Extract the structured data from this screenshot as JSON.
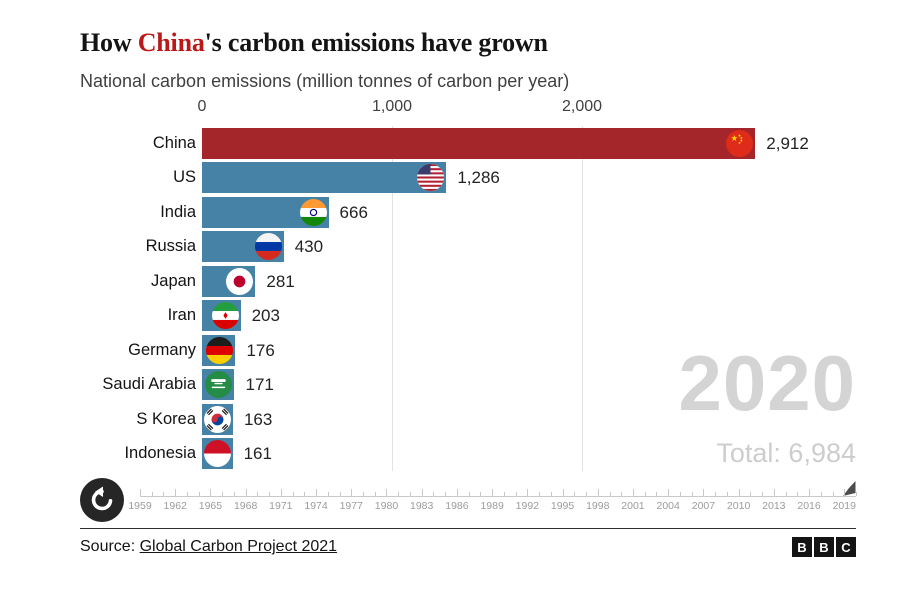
{
  "header": {
    "title_prefix": "How ",
    "title_highlight": "China",
    "title_suffix": "'s carbon emissions have grown",
    "subtitle": "National carbon emissions (million tonnes of carbon per year)"
  },
  "chart_data": {
    "type": "bar",
    "orientation": "horizontal",
    "title": "How China's carbon emissions have grown",
    "subtitle": "National carbon emissions (million tonnes of carbon per year)",
    "unit": "million tonnes of carbon per year",
    "year": "2020",
    "total_label": "Total: 6,984",
    "total_value": 6984,
    "categories": [
      "China",
      "US",
      "India",
      "Russia",
      "Japan",
      "Iran",
      "Germany",
      "Saudi Arabia",
      "S Korea",
      "Indonesia"
    ],
    "values": [
      2912,
      1286,
      666,
      430,
      281,
      203,
      176,
      171,
      163,
      161
    ],
    "value_labels": [
      "2,912",
      "1,286",
      "666",
      "430",
      "281",
      "203",
      "176",
      "171",
      "163",
      "161"
    ],
    "flags": [
      "china-flag",
      "us-flag",
      "india-flag",
      "russia-flag",
      "japan-flag",
      "iran-flag",
      "germany-flag",
      "saudi-arabia-flag",
      "south-korea-flag",
      "indonesia-flag"
    ],
    "highlight_index": 0,
    "axis": {
      "ticks": [
        0,
        1000,
        2000
      ],
      "tick_labels": [
        "0",
        "1,000",
        "2,000"
      ],
      "xlim": [
        0,
        3460
      ],
      "grid": true,
      "gridline_ticks": [
        1000,
        2000
      ]
    },
    "colors": {
      "highlight_bar": "#a5262a",
      "default_bar": "#4682a5",
      "grid": "#e2e2e2",
      "big_year": "#d4d4d4",
      "title_highlight": "#bb1919"
    }
  },
  "timeline": {
    "start_year": 1959,
    "end_year": 2020,
    "label_step": 3,
    "label_years": [
      "1959",
      "1962",
      "1965",
      "1968",
      "1971",
      "1974",
      "1977",
      "1980",
      "1983",
      "1986",
      "1989",
      "1992",
      "1995",
      "1998",
      "2001",
      "2004",
      "2007",
      "2010",
      "2013",
      "2016",
      "2019"
    ],
    "current_year": "2020"
  },
  "footer": {
    "source_prefix": "Source: ",
    "source_link": "Global Carbon Project 2021",
    "logo_letters": [
      "B",
      "B",
      "C"
    ]
  }
}
